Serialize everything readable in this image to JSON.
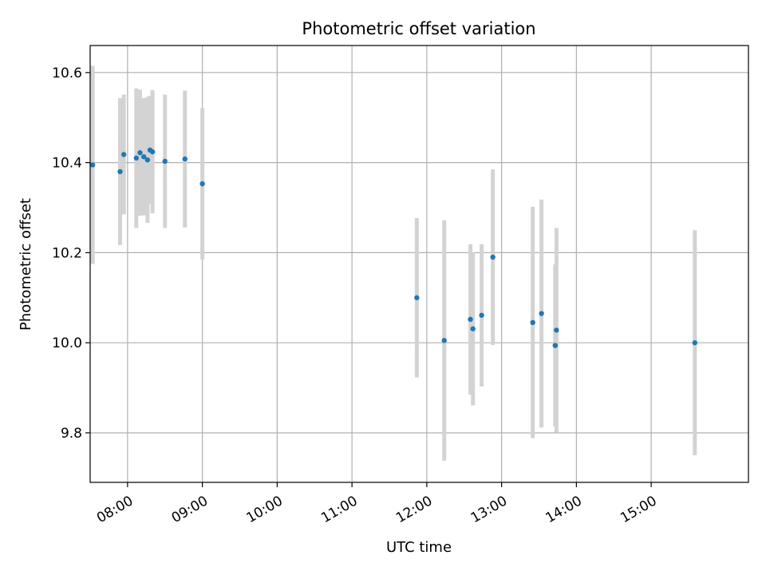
{
  "chart_data": {
    "type": "scatter",
    "title": "Photometric offset variation",
    "xlabel": "UTC time",
    "ylabel": "Photometric offset",
    "x_axis": "time",
    "xlim": [
      "07:30",
      "16:18"
    ],
    "ylim": [
      9.69,
      10.66
    ],
    "xticks": [
      "08:00",
      "09:00",
      "10:00",
      "11:00",
      "12:00",
      "13:00",
      "14:00",
      "15:00"
    ],
    "yticks": [
      9.8,
      10.0,
      10.2,
      10.4,
      10.6
    ],
    "grid": true,
    "colors": {
      "points": "#1f77b4",
      "error_bars": "#d3d3d3"
    },
    "series": [
      {
        "points": [
          {
            "x": "07:32",
            "y": 10.395,
            "err": 0.22
          },
          {
            "x": "07:54",
            "y": 10.38,
            "err": 0.163
          },
          {
            "x": "07:57",
            "y": 10.418,
            "err": 0.133
          },
          {
            "x": "08:07",
            "y": 10.41,
            "err": 0.155
          },
          {
            "x": "08:10",
            "y": 10.422,
            "err": 0.14
          },
          {
            "x": "08:13",
            "y": 10.413,
            "err": 0.13
          },
          {
            "x": "08:16",
            "y": 10.406,
            "err": 0.14
          },
          {
            "x": "08:18",
            "y": 10.428,
            "err": 0.12
          },
          {
            "x": "08:20",
            "y": 10.424,
            "err": 0.137
          },
          {
            "x": "08:30",
            "y": 10.403,
            "err": 0.148
          },
          {
            "x": "08:46",
            "y": 10.408,
            "err": 0.152
          },
          {
            "x": "09:00",
            "y": 10.353,
            "err": 0.168
          },
          {
            "x": "11:52",
            "y": 10.1,
            "err": 0.177
          },
          {
            "x": "12:14",
            "y": 10.005,
            "err": 0.267
          },
          {
            "x": "12:35",
            "y": 10.052,
            "err": 0.167
          },
          {
            "x": "12:37",
            "y": 10.031,
            "err": 0.17
          },
          {
            "x": "12:44",
            "y": 10.061,
            "err": 0.158
          },
          {
            "x": "12:53",
            "y": 10.19,
            "err": 0.195
          },
          {
            "x": "13:25",
            "y": 10.045,
            "err": 0.257
          },
          {
            "x": "13:32",
            "y": 10.065,
            "err": 0.253
          },
          {
            "x": "13:43",
            "y": 9.994,
            "err": 0.18
          },
          {
            "x": "13:44",
            "y": 10.028,
            "err": 0.227
          },
          {
            "x": "15:35",
            "y": 10.0,
            "err": 0.25
          }
        ]
      }
    ]
  }
}
